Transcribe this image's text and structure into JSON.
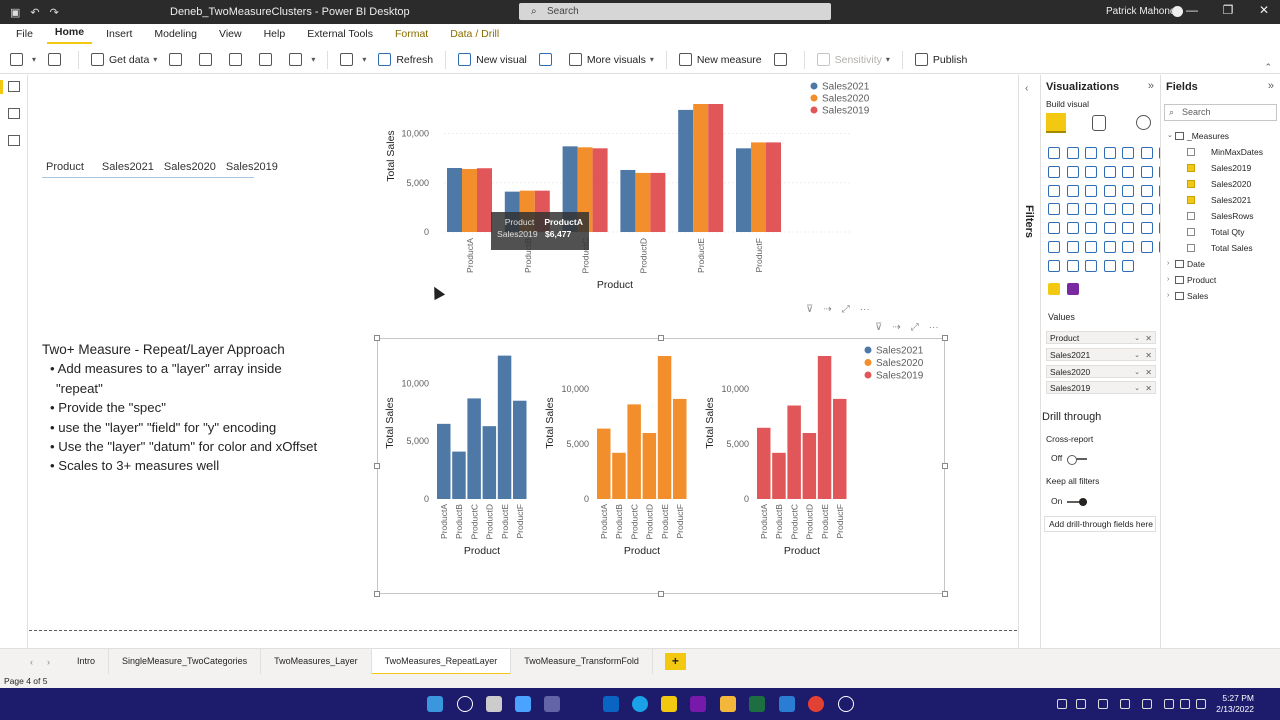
{
  "titlebar": {
    "title": "Deneb_TwoMeasureClusters - Power BI Desktop",
    "search_placeholder": "Search",
    "user": "Patrick Mahoney",
    "qat_icons": [
      "save-icon",
      "undo-icon",
      "redo-icon"
    ]
  },
  "ribbon": {
    "tabs": [
      "File",
      "Home",
      "Insert",
      "Modeling",
      "View",
      "Help",
      "External Tools",
      "Format",
      "Data / Drill"
    ],
    "active_tab": "Home",
    "buttons": {
      "get_data": "Get data",
      "refresh": "Refresh",
      "new_visual": "New visual",
      "more_visuals": "More visuals",
      "new_measure": "New measure",
      "sensitivity": "Sensitivity",
      "publish": "Publish"
    }
  },
  "slicer": {
    "headers": [
      "Product",
      "Sales2021",
      "Sales2020",
      "Sales2019"
    ]
  },
  "textbox": {
    "title": "Two+ Measure - Repeat/Layer Approach",
    "bullets": [
      "Add measures to a \"layer\" array inside",
      "Provide the \"spec\"",
      "use the \"layer\" \"field\" for \"y\" encoding",
      "Use the \"layer\" \"datum\" for color and xOffset",
      "Scales to 3+ measures well"
    ],
    "continuation": "\"repeat\""
  },
  "tooltip": {
    "k1": "Product",
    "v1": "ProductA",
    "k2": "Sales2019",
    "v2": "$6,477"
  },
  "colors": {
    "sales2021": "#4e79a7",
    "sales2020": "#f28e2b",
    "sales2019": "#e15759",
    "accent": "#f2c811"
  },
  "chart_data": [
    {
      "type": "bar",
      "layout": "grouped",
      "categories": [
        "ProductA",
        "ProductB",
        "ProductC",
        "ProductD",
        "ProductE",
        "ProductF"
      ],
      "series": [
        {
          "name": "Sales2021",
          "values": [
            6500,
            4100,
            8700,
            6300,
            12400,
            8500
          ]
        },
        {
          "name": "Sales2020",
          "values": [
            6400,
            4200,
            8600,
            6000,
            13000,
            9100
          ]
        },
        {
          "name": "Sales2019",
          "values": [
            6477,
            4200,
            8500,
            6000,
            13000,
            9100
          ]
        }
      ],
      "xlabel": "Product",
      "ylabel": "Total Sales",
      "ylim": [
        0,
        13000
      ],
      "yticks": [
        "0",
        "5,000",
        "10,000"
      ],
      "legend": "top-right"
    },
    {
      "type": "bar",
      "layout": "repeat",
      "categories": [
        "ProductA",
        "ProductB",
        "ProductC",
        "ProductD",
        "ProductE",
        "ProductF"
      ],
      "series": [
        {
          "name": "Sales2021",
          "values": [
            6500,
            4100,
            8700,
            6300,
            12400,
            8500
          ]
        },
        {
          "name": "Sales2020",
          "values": [
            6400,
            4200,
            8600,
            6000,
            13000,
            9100
          ]
        },
        {
          "name": "Sales2019",
          "values": [
            6477,
            4200,
            8500,
            6000,
            13000,
            9100
          ]
        }
      ],
      "xlabel": "Product",
      "ylabel": "Total Sales",
      "ylims": [
        [
          0,
          12800
        ],
        [
          0,
          13000
        ],
        [
          0,
          13000
        ]
      ],
      "yticks": [
        "0",
        "5,000",
        "10,000"
      ],
      "legend": "top-right"
    }
  ],
  "viz_pane": {
    "title": "Visualizations",
    "build": "Build visual",
    "values_label": "Values",
    "wells": [
      "Product",
      "Sales2021",
      "Sales2020",
      "Sales2019"
    ],
    "drill_title": "Drill through",
    "cross_report": "Cross-report",
    "off": "Off",
    "keep_filters": "Keep all filters",
    "on": "On",
    "add_drill": "Add drill-through fields here"
  },
  "filters_pane": {
    "label": "Filters"
  },
  "fields_pane": {
    "title": "Fields",
    "search": "Search",
    "tables": [
      {
        "name": "_Measures",
        "expanded": true,
        "fields": [
          {
            "name": "MinMaxDates",
            "checked": false
          },
          {
            "name": "Sales2019",
            "checked": true
          },
          {
            "name": "Sales2020",
            "checked": true
          },
          {
            "name": "Sales2021",
            "checked": true
          },
          {
            "name": "SalesRows",
            "checked": false
          },
          {
            "name": "Total Qty",
            "checked": false
          },
          {
            "name": "Total Sales",
            "checked": false
          }
        ]
      },
      {
        "name": "Date",
        "expanded": false
      },
      {
        "name": "Product",
        "expanded": false
      },
      {
        "name": "Sales",
        "expanded": false
      }
    ]
  },
  "pages": [
    "Intro",
    "SingleMeasure_TwoCategories",
    "TwoMeasures_Layer",
    "TwoMeasures_RepeatLayer",
    "TwoMeasure_TransformFold"
  ],
  "active_page": "TwoMeasures_RepeatLayer",
  "add_page": "+",
  "status": "Page 4 of 5",
  "clock": {
    "time": "5:27 PM",
    "date": "2/13/2022"
  }
}
